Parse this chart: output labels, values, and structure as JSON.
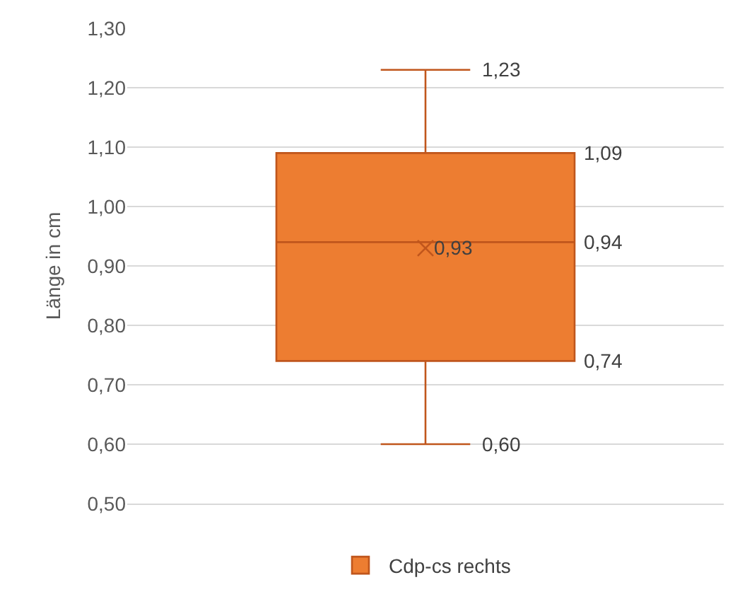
{
  "chart_data": {
    "type": "box",
    "ylabel": "Länge in cm",
    "categories": [
      null
    ],
    "series": [
      {
        "name": "Cdp-cs rechts",
        "color": "#ed7d31",
        "boxes": [
          {
            "low": 0.6,
            "q1": 0.74,
            "median": 0.94,
            "q3": 1.09,
            "high": 1.23,
            "mean": 0.93
          }
        ]
      }
    ],
    "ylim": [
      0.5,
      1.3
    ],
    "yticks": [
      {
        "value": 0.5,
        "label": "0,50"
      },
      {
        "value": 0.6,
        "label": "0,60"
      },
      {
        "value": 0.7,
        "label": "0,70"
      },
      {
        "value": 0.8,
        "label": "0,80"
      },
      {
        "value": 0.9,
        "label": "0,90"
      },
      {
        "value": 1.0,
        "label": "1,00"
      },
      {
        "value": 1.1,
        "label": "1,10"
      },
      {
        "value": 1.2,
        "label": "1,20"
      },
      {
        "value": 1.3,
        "label": "1,30"
      }
    ],
    "grid": "y",
    "legend": "bottom",
    "annotations": [
      "1,23",
      "1,09",
      "0,94",
      "0,93",
      "0,74",
      "0,60"
    ]
  }
}
